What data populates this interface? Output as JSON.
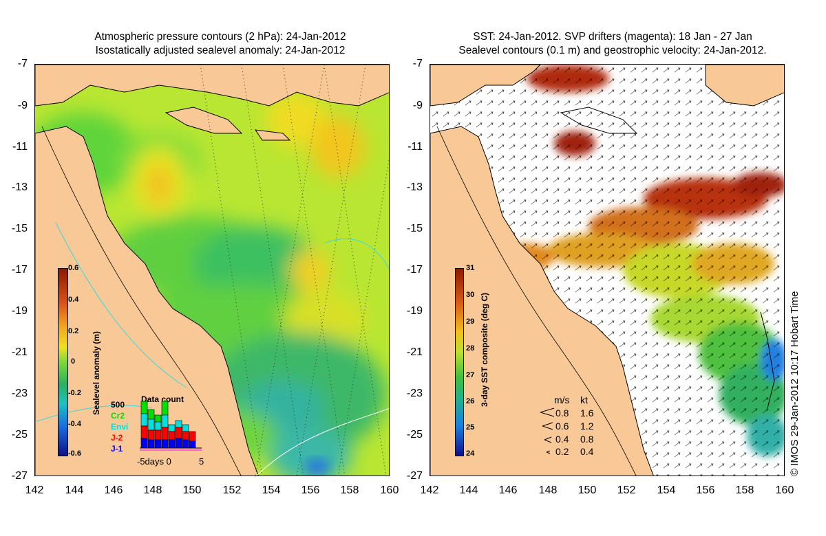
{
  "left_panel": {
    "title_line1": "Atmospheric pressure contours (2 hPa): 24-Jan-2012",
    "title_line2": "Isostatically adjusted sealevel anomaly: 24-Jan-2012",
    "y_ticks": [
      "-7",
      "-9",
      "-11",
      "-13",
      "-15",
      "-17",
      "-19",
      "-21",
      "-23",
      "-25",
      "-27"
    ],
    "x_ticks": [
      "142",
      "144",
      "146",
      "148",
      "150",
      "152",
      "154",
      "156",
      "158",
      "160"
    ],
    "colorbar": {
      "label": "Sealevel anomaly (m)",
      "ticks": [
        "0.6",
        "0.4",
        "0.2",
        "0",
        "-0.2",
        "-0.4",
        "-0.6"
      ]
    },
    "data_count": {
      "title": "Data count",
      "scale_label": "500",
      "missions": [
        {
          "name": "Cr2",
          "color": "#00e000"
        },
        {
          "name": "Envi",
          "color": "#00e0e0"
        },
        {
          "name": "J-2",
          "color": "#ff0000"
        },
        {
          "name": "J-1",
          "color": "#0000ff"
        }
      ],
      "axis_label": "-5days 0",
      "axis_end": "5"
    }
  },
  "right_panel": {
    "title_line1": "SST: 24-Jan-2012. SVP drifters (magenta): 18 Jan - 27 Jan",
    "title_line2": "Sealevel contours (0.1 m) and geostrophic velocity: 24-Jan-2012.",
    "y_ticks": [
      "-7",
      "-9",
      "-11",
      "-13",
      "-15",
      "-17",
      "-19",
      "-21",
      "-23",
      "-25",
      "-27"
    ],
    "x_ticks": [
      "142",
      "144",
      "146",
      "148",
      "150",
      "152",
      "154",
      "156",
      "158",
      "160"
    ],
    "colorbar": {
      "label": "3-day SST composite (deg C)",
      "ticks": [
        "31",
        "30",
        "29",
        "28",
        "27",
        "26",
        "25",
        "24"
      ]
    },
    "velocity_legend": {
      "header_ms": "m/s",
      "header_kt": "kt",
      "rows": [
        {
          "ms": "0.8",
          "kt": "1.6"
        },
        {
          "ms": "0.6",
          "kt": "1.2"
        },
        {
          "ms": "0.4",
          "kt": "0.8"
        },
        {
          "ms": "0.2",
          "kt": "0.4"
        }
      ]
    }
  },
  "credit": "© IMOS 29-Jan-2012 10:17 Hobart Time"
}
